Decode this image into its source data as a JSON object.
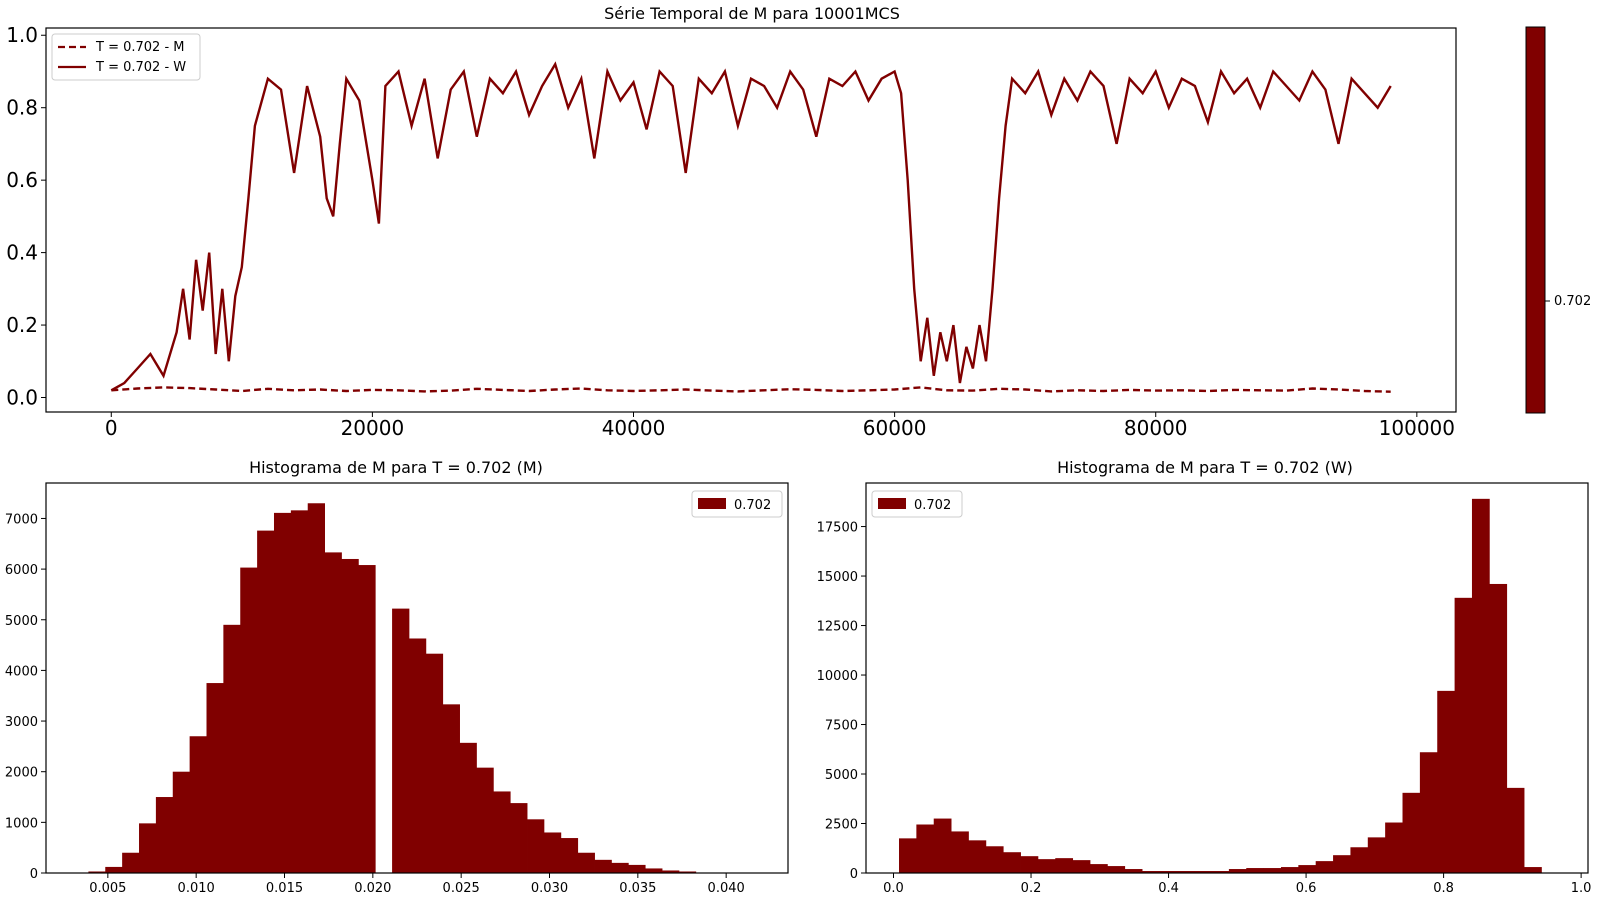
{
  "figure": {
    "accent_color": "#800000",
    "colorbar_tick": "0.702"
  },
  "chart_data": [
    {
      "type": "line",
      "title": "Série Temporal de M para 10001MCS",
      "xlim": [
        -5000,
        103000
      ],
      "ylim": [
        -0.04,
        1.02
      ],
      "xticks": [
        "0",
        "20000",
        "40000",
        "60000",
        "80000",
        "100000"
      ],
      "xtick_values": [
        0,
        20000,
        40000,
        60000,
        80000,
        100000
      ],
      "yticks": [
        "0.0",
        "0.2",
        "0.4",
        "0.6",
        "0.8",
        "1.0"
      ],
      "ytick_values": [
        0,
        0.2,
        0.4,
        0.6,
        0.8,
        1.0
      ],
      "legend_position": "upper-left",
      "series": [
        {
          "name": "T = 0.702 - M",
          "style": "dashed",
          "color": "#800000",
          "x": [
            0,
            2000,
            4000,
            6000,
            8000,
            10000,
            12000,
            14000,
            16000,
            18000,
            20000,
            22000,
            24000,
            26000,
            28000,
            30000,
            32000,
            34000,
            36000,
            38000,
            40000,
            42000,
            44000,
            46000,
            48000,
            50000,
            52000,
            54000,
            56000,
            58000,
            60000,
            62000,
            64000,
            66000,
            68000,
            70000,
            72000,
            74000,
            76000,
            78000,
            80000,
            82000,
            84000,
            86000,
            88000,
            90000,
            92000,
            94000,
            96000,
            98000
          ],
          "y": [
            0.02,
            0.025,
            0.028,
            0.026,
            0.022,
            0.018,
            0.024,
            0.02,
            0.022,
            0.018,
            0.021,
            0.02,
            0.017,
            0.019,
            0.024,
            0.021,
            0.018,
            0.022,
            0.025,
            0.02,
            0.018,
            0.02,
            0.022,
            0.019,
            0.017,
            0.02,
            0.023,
            0.021,
            0.018,
            0.02,
            0.022,
            0.028,
            0.02,
            0.019,
            0.024,
            0.022,
            0.017,
            0.02,
            0.018,
            0.021,
            0.019,
            0.02,
            0.018,
            0.021,
            0.02,
            0.019,
            0.025,
            0.022,
            0.018,
            0.016
          ]
        },
        {
          "name": "T = 0.702 - W",
          "style": "solid",
          "color": "#800000",
          "x": [
            0,
            1000,
            2000,
            3000,
            4000,
            5000,
            5500,
            6000,
            6500,
            7000,
            7500,
            8000,
            8500,
            9000,
            9500,
            10000,
            10500,
            11000,
            12000,
            13000,
            14000,
            15000,
            16000,
            16500,
            17000,
            17500,
            18000,
            19000,
            20000,
            20500,
            21000,
            22000,
            23000,
            24000,
            25000,
            26000,
            27000,
            28000,
            29000,
            30000,
            31000,
            32000,
            33000,
            34000,
            35000,
            36000,
            37000,
            38000,
            39000,
            40000,
            41000,
            42000,
            43000,
            44000,
            45000,
            46000,
            47000,
            48000,
            49000,
            50000,
            51000,
            52000,
            53000,
            54000,
            55000,
            56000,
            57000,
            58000,
            59000,
            60000,
            60500,
            61000,
            61500,
            62000,
            62500,
            63000,
            63500,
            64000,
            64500,
            65000,
            65500,
            66000,
            66500,
            67000,
            67500,
            68000,
            68500,
            69000,
            70000,
            71000,
            72000,
            73000,
            74000,
            75000,
            76000,
            77000,
            78000,
            79000,
            80000,
            81000,
            82000,
            83000,
            84000,
            85000,
            86000,
            87000,
            88000,
            89000,
            90000,
            91000,
            92000,
            93000,
            94000,
            95000,
            96000,
            97000,
            98000
          ],
          "y": [
            0.02,
            0.04,
            0.08,
            0.12,
            0.06,
            0.18,
            0.3,
            0.16,
            0.38,
            0.24,
            0.4,
            0.12,
            0.3,
            0.1,
            0.28,
            0.36,
            0.55,
            0.75,
            0.88,
            0.85,
            0.62,
            0.86,
            0.72,
            0.55,
            0.5,
            0.7,
            0.88,
            0.82,
            0.6,
            0.48,
            0.86,
            0.9,
            0.75,
            0.88,
            0.66,
            0.85,
            0.9,
            0.72,
            0.88,
            0.84,
            0.9,
            0.78,
            0.86,
            0.92,
            0.8,
            0.88,
            0.66,
            0.9,
            0.82,
            0.87,
            0.74,
            0.9,
            0.86,
            0.62,
            0.88,
            0.84,
            0.9,
            0.75,
            0.88,
            0.86,
            0.8,
            0.9,
            0.85,
            0.72,
            0.88,
            0.86,
            0.9,
            0.82,
            0.88,
            0.9,
            0.84,
            0.6,
            0.3,
            0.1,
            0.22,
            0.06,
            0.18,
            0.1,
            0.2,
            0.04,
            0.14,
            0.08,
            0.2,
            0.1,
            0.3,
            0.55,
            0.75,
            0.88,
            0.84,
            0.9,
            0.78,
            0.88,
            0.82,
            0.9,
            0.86,
            0.7,
            0.88,
            0.84,
            0.9,
            0.8,
            0.88,
            0.86,
            0.76,
            0.9,
            0.84,
            0.88,
            0.8,
            0.9,
            0.86,
            0.82,
            0.9,
            0.85,
            0.7,
            0.88,
            0.84,
            0.8,
            0.86
          ]
        }
      ]
    },
    {
      "type": "bar",
      "title": "Histograma de M para T = 0.702 (M)",
      "xlim": [
        0.0015,
        0.0435
      ],
      "ylim": [
        0,
        7700
      ],
      "xticks": [
        "0.005",
        "0.010",
        "0.015",
        "0.020",
        "0.025",
        "0.030",
        "0.035",
        "0.040"
      ],
      "xtick_values": [
        0.005,
        0.01,
        0.015,
        0.02,
        0.025,
        0.03,
        0.035,
        0.04
      ],
      "yticks": [
        "0",
        "1000",
        "2000",
        "3000",
        "4000",
        "5000",
        "6000",
        "7000"
      ],
      "ytick_values": [
        0,
        1000,
        2000,
        3000,
        4000,
        5000,
        6000,
        7000
      ],
      "legend_position": "upper-right",
      "series": [
        {
          "name": "0.702",
          "color": "#800000",
          "bin_start": 0.0039,
          "bin_width": 0.000955,
          "values": [
            30,
            120,
            400,
            980,
            1500,
            2000,
            2700,
            3750,
            4900,
            6030,
            6760,
            7110,
            7160,
            7300,
            6330,
            6200,
            6080,
            0,
            5220,
            4630,
            4330,
            3330,
            2570,
            2080,
            1610,
            1380,
            1060,
            800,
            690,
            400,
            260,
            200,
            160,
            90,
            50,
            30
          ]
        }
      ]
    },
    {
      "type": "bar",
      "title": "Histograma de M para T = 0.702 (W)",
      "xlim": [
        -0.04,
        1.01
      ],
      "ylim": [
        0,
        19700
      ],
      "xticks": [
        "0.0",
        "0.2",
        "0.4",
        "0.6",
        "0.8",
        "1.0"
      ],
      "xtick_values": [
        0,
        0.2,
        0.4,
        0.6,
        0.8,
        1.0
      ],
      "yticks": [
        "0",
        "2500",
        "5000",
        "7500",
        "10000",
        "12500",
        "15000",
        "17500"
      ],
      "ytick_values": [
        0,
        2500,
        5000,
        7500,
        10000,
        12500,
        15000,
        17500
      ],
      "legend_position": "upper-left",
      "series": [
        {
          "name": "0.702",
          "color": "#800000",
          "bin_start": 0.008,
          "bin_width": 0.02525,
          "values": [
            1750,
            2450,
            2750,
            2100,
            1650,
            1350,
            1050,
            850,
            700,
            750,
            650,
            450,
            350,
            200,
            100,
            100,
            100,
            100,
            100,
            200,
            250,
            250,
            300,
            400,
            600,
            900,
            1300,
            1800,
            2550,
            4050,
            6100,
            9200,
            13900,
            18900,
            14600,
            4300,
            300
          ]
        }
      ]
    }
  ]
}
